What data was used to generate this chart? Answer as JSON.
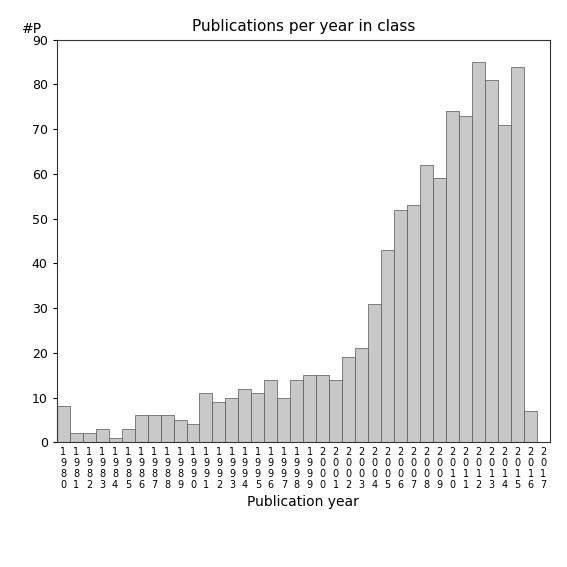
{
  "title": "Publications per year in class",
  "xlabel": "Publication year",
  "ylabel": "#P",
  "ylim": [
    0,
    90
  ],
  "yticks": [
    0,
    10,
    20,
    30,
    40,
    50,
    60,
    70,
    80,
    90
  ],
  "bar_color": "#c8c8c8",
  "bar_edgecolor": "#555555",
  "years": [
    1980,
    1981,
    1982,
    1983,
    1984,
    1985,
    1986,
    1987,
    1988,
    1989,
    1990,
    1991,
    1992,
    1993,
    1994,
    1995,
    1996,
    1997,
    1998,
    1999,
    2000,
    2001,
    2002,
    2003,
    2004,
    2005,
    2006,
    2007,
    2008,
    2009,
    2010,
    2011,
    2012,
    2013,
    2014,
    2015,
    2016,
    2017
  ],
  "values": [
    8,
    2,
    2,
    3,
    1,
    3,
    6,
    6,
    6,
    5,
    4,
    11,
    9,
    10,
    12,
    11,
    14,
    10,
    14,
    15,
    15,
    14,
    19,
    21,
    31,
    43,
    52,
    53,
    62,
    59,
    74,
    73,
    85,
    81,
    71,
    84,
    7,
    0
  ],
  "figsize": [
    5.67,
    5.67
  ],
  "dpi": 100
}
